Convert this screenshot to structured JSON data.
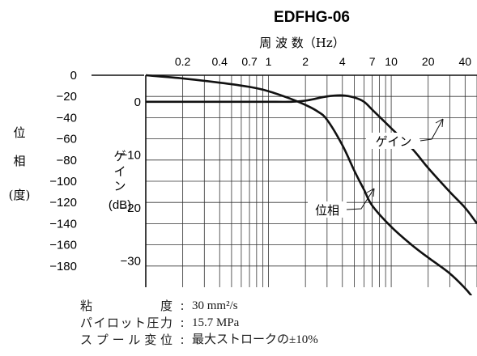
{
  "chart_data": {
    "type": "line",
    "title": "EDFHG-06",
    "xlabel": "周 波 数（Hz）",
    "x_scale": "log",
    "x_ticks": [
      0.2,
      0.4,
      0.7,
      1,
      2,
      4,
      7,
      10,
      20,
      40
    ],
    "x_tick_labels": [
      "0.2",
      "0.4",
      "0.7",
      "1",
      "2",
      "4",
      "7",
      "10",
      "20",
      "40"
    ],
    "xlim": [
      0.1,
      50
    ],
    "phase_axis": {
      "label_chars": [
        "位",
        "相",
        "(度)"
      ],
      "ticks": [
        "0",
        "−20",
        "−40",
        "−60",
        "−80",
        "−100",
        "−120",
        "−140",
        "−160",
        "−180"
      ],
      "range": [
        -200,
        0
      ]
    },
    "gain_axis": {
      "label_chars": [
        "ゲ",
        "イ",
        "ン",
        "(dB)"
      ],
      "ticks": [
        "0",
        "−10",
        "−20",
        "−30"
      ],
      "range": [
        -35,
        5
      ]
    },
    "series": [
      {
        "name": "ゲイン",
        "axis": "gain",
        "x": [
          0.1,
          0.2,
          0.4,
          0.7,
          1,
          1.5,
          2,
          3,
          4,
          5,
          6,
          7,
          10,
          15,
          20,
          30,
          40,
          50
        ],
        "y": [
          0,
          0,
          0,
          0,
          0,
          0,
          0.2,
          1.0,
          1.2,
          0.8,
          0,
          -1.5,
          -5,
          -9,
          -12.5,
          -17,
          -20,
          -23
        ]
      },
      {
        "name": "位相",
        "axis": "phase",
        "x": [
          0.1,
          0.2,
          0.4,
          0.7,
          1,
          1.5,
          2,
          2.5,
          3,
          4,
          5,
          6,
          7,
          10,
          15,
          20,
          30,
          40,
          45
        ],
        "y": [
          0,
          -3,
          -7,
          -11,
          -15,
          -22,
          -28,
          -34,
          -42,
          -66,
          -90,
          -108,
          -123,
          -143,
          -161,
          -172,
          -187,
          -201,
          -208
        ]
      }
    ],
    "annotations": [
      {
        "text": "ゲイン",
        "series": "ゲイン"
      },
      {
        "text": "位相",
        "series": "位相"
      }
    ]
  },
  "notes": [
    {
      "label": "粘度",
      "value": "30 mm²/s"
    },
    {
      "label": "パイロット圧力",
      "value": "15.7 MPa"
    },
    {
      "label": "スプール変位",
      "value": "最大ストロークの±10%"
    }
  ]
}
